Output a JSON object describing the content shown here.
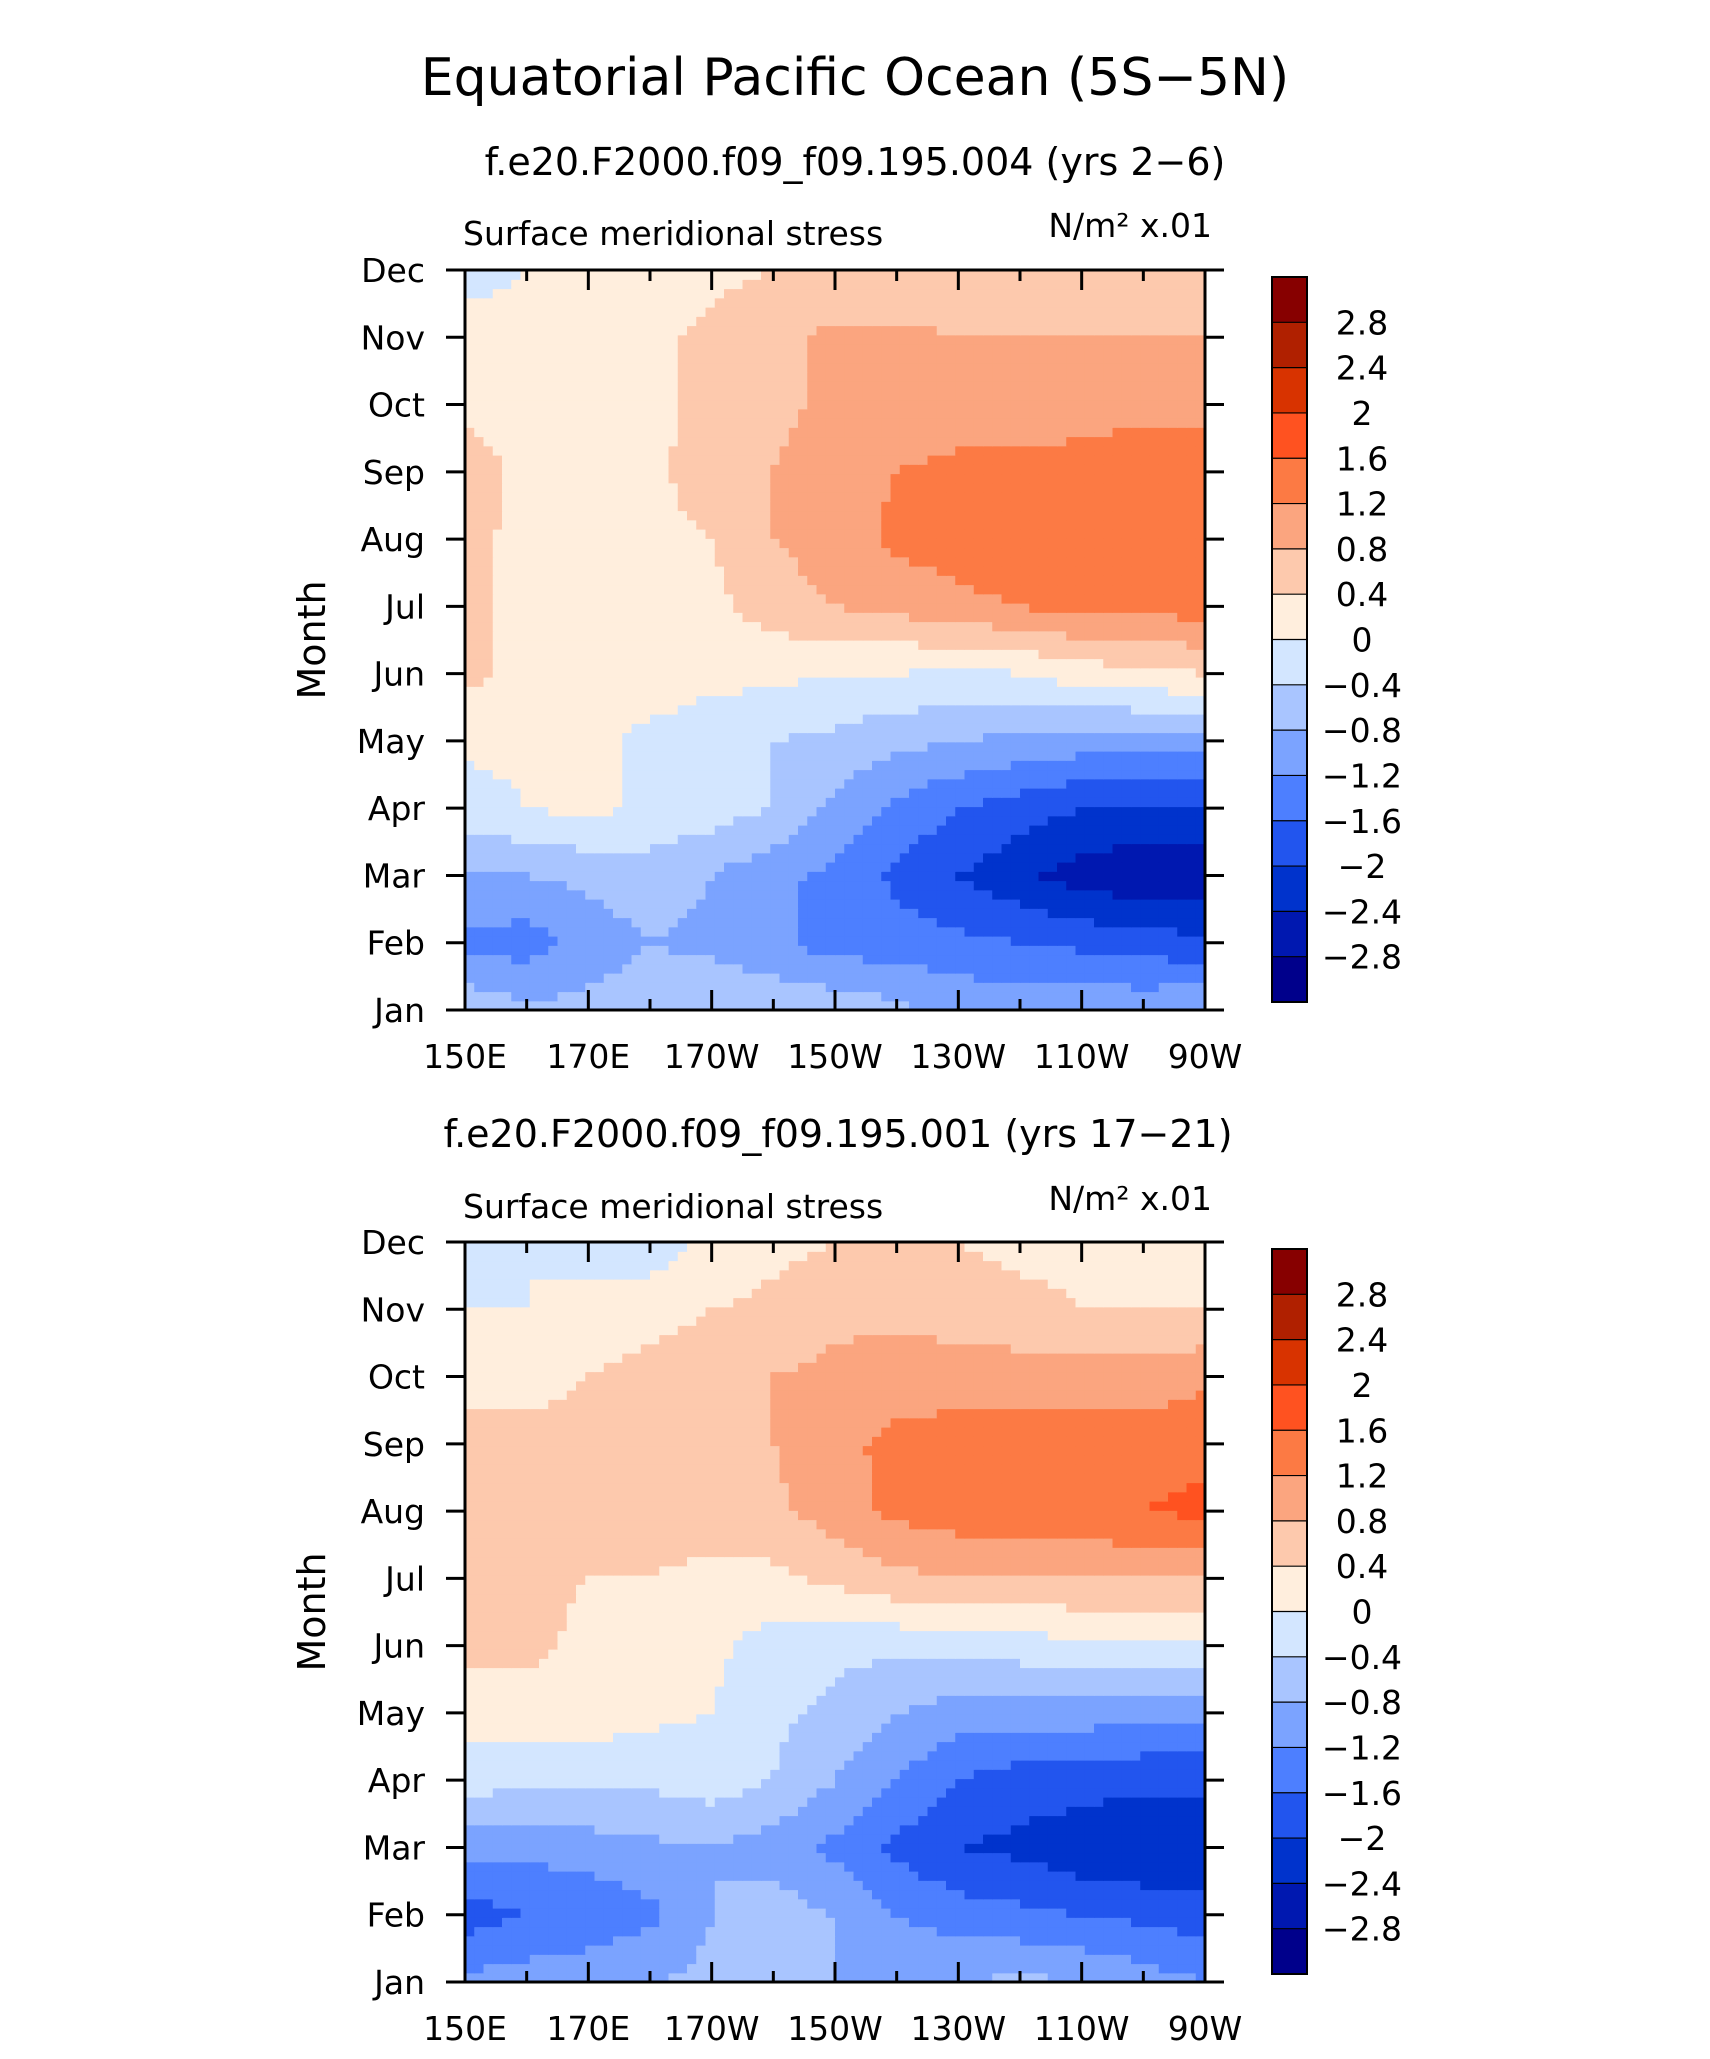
{
  "figure": {
    "title": "Equatorial Pacific Ocean (5S−5N)"
  },
  "chart_data": [
    {
      "type": "heatmap",
      "subtitle": "f.e20.F2000.f09_f09.195.004 (yrs 2−6)",
      "variable": "Surface meridional stress",
      "units": "N/m² x.01",
      "xlabel": "",
      "ylabel": "Month",
      "x_ticks": [
        "150E",
        "170E",
        "170W",
        "150W",
        "130W",
        "110W",
        "90W"
      ],
      "y_ticks": [
        "Jan",
        "Feb",
        "Mar",
        "Apr",
        "May",
        "Jun",
        "Jul",
        "Aug",
        "Sep",
        "Oct",
        "Nov",
        "Dec"
      ],
      "xlim": [
        "150E",
        "90W"
      ],
      "ylim": [
        "Jan",
        "Dec"
      ],
      "colorbar_labels": [
        "2.8",
        "2.4",
        "2",
        "1.6",
        "1.2",
        "0.8",
        "0.4",
        "0",
        "−0.4",
        "−0.8",
        "−1.2",
        "−1.6",
        "−2",
        "−2.4",
        "−2.8"
      ],
      "values": [
        [
          -0.5,
          -0.7,
          -0.7,
          -0.6,
          -0.4,
          -0.5,
          -0.5,
          -0.7,
          -0.9,
          -0.9,
          -0.9,
          -0.9,
          -0.8
        ],
        [
          -1.3,
          -1.4,
          -1.0,
          -0.8,
          -0.9,
          -1.1,
          -1.4,
          -1.4,
          -1.5,
          -1.6,
          -1.7,
          -1.8,
          -1.9
        ],
        [
          -0.8,
          -0.8,
          -0.7,
          -0.6,
          -0.8,
          -1.1,
          -1.3,
          -1.7,
          -2.0,
          -2.3,
          -2.6,
          -2.7,
          -2.7
        ],
        [
          -0.2,
          0.0,
          0.1,
          -0.1,
          -0.2,
          -0.4,
          -0.9,
          -1.3,
          -1.6,
          -1.8,
          -2.0,
          -2.1,
          -2.1
        ],
        [
          0.1,
          0.1,
          0.1,
          -0.1,
          -0.2,
          -0.4,
          -0.5,
          -0.7,
          -0.8,
          -0.9,
          -1.0,
          -1.0,
          -1.0
        ],
        [
          0.5,
          0.3,
          0.2,
          0.2,
          0.1,
          0.1,
          0.0,
          0.0,
          -0.1,
          0.0,
          0.2,
          0.3,
          0.4
        ],
        [
          0.5,
          0.3,
          0.2,
          0.2,
          0.3,
          0.6,
          0.8,
          0.9,
          1.1,
          1.2,
          1.3,
          1.3,
          1.4
        ],
        [
          0.5,
          0.3,
          0.2,
          0.3,
          0.4,
          0.8,
          1.0,
          1.3,
          1.4,
          1.4,
          1.4,
          1.4,
          1.5
        ],
        [
          0.6,
          0.3,
          0.2,
          0.3,
          0.6,
          0.8,
          1.0,
          1.2,
          1.3,
          1.3,
          1.3,
          1.4,
          1.4
        ],
        [
          0.3,
          0.2,
          0.2,
          0.3,
          0.5,
          0.7,
          0.9,
          1.0,
          1.0,
          1.0,
          1.1,
          1.1,
          1.1
        ],
        [
          0.1,
          0.1,
          0.2,
          0.3,
          0.5,
          0.7,
          0.9,
          0.9,
          0.8,
          0.8,
          0.8,
          0.8,
          0.8
        ],
        [
          -0.1,
          0.0,
          0.0,
          0.2,
          0.3,
          0.4,
          0.4,
          0.4,
          0.5,
          0.5,
          0.5,
          0.5,
          0.5
        ]
      ]
    },
    {
      "type": "heatmap",
      "subtitle": "f.e20.F2000.f09_f09.195.001 (yrs 17−21)",
      "variable": "Surface meridional stress",
      "units": "N/m² x.01",
      "xlabel": "",
      "ylabel": "Month",
      "x_ticks": [
        "150E",
        "170E",
        "170W",
        "150W",
        "130W",
        "110W",
        "90W"
      ],
      "y_ticks": [
        "Jan",
        "Feb",
        "Mar",
        "Apr",
        "May",
        "Jun",
        "Jul",
        "Aug",
        "Sep",
        "Oct",
        "Nov",
        "Dec"
      ],
      "xlim": [
        "150E",
        "90W"
      ],
      "ylim": [
        "Jan",
        "Dec"
      ],
      "colorbar_labels": [
        "2.8",
        "2.4",
        "2",
        "1.6",
        "1.2",
        "0.8",
        "0.4",
        "0",
        "−0.4",
        "−0.8",
        "−1.2",
        "−1.6",
        "−2",
        "−2.4",
        "−2.8"
      ],
      "values": [
        [
          -1.1,
          -1.0,
          -0.9,
          -0.8,
          -0.7,
          -0.7,
          -0.8,
          -0.9,
          -0.8,
          -0.7,
          -0.8,
          -1.0,
          -1.2
        ],
        [
          -1.8,
          -1.6,
          -1.5,
          -1.3,
          -0.8,
          -0.6,
          -0.8,
          -1.2,
          -1.4,
          -1.5,
          -1.6,
          -1.7,
          -1.8
        ],
        [
          -1.1,
          -1.1,
          -1.0,
          -0.9,
          -0.8,
          -1.0,
          -1.3,
          -1.7,
          -2.0,
          -2.1,
          -2.3,
          -2.4,
          -2.4
        ],
        [
          -0.2,
          -0.3,
          -0.3,
          -0.3,
          -0.2,
          -0.4,
          -0.8,
          -1.2,
          -1.6,
          -1.8,
          -1.8,
          -1.9,
          -1.9
        ],
        [
          0.2,
          0.2,
          0.2,
          0.1,
          0.0,
          -0.3,
          -0.5,
          -0.8,
          -1.0,
          -1.0,
          -1.0,
          -1.1,
          -1.1
        ],
        [
          0.5,
          0.5,
          0.3,
          0.2,
          0.1,
          -0.2,
          -0.3,
          -0.3,
          -0.2,
          -0.2,
          -0.1,
          -0.1,
          -0.1
        ],
        [
          0.5,
          0.5,
          0.4,
          0.4,
          0.3,
          0.3,
          0.5,
          0.7,
          0.8,
          0.8,
          0.8,
          0.8,
          0.8
        ],
        [
          0.6,
          0.5,
          0.4,
          0.5,
          0.6,
          0.7,
          1.0,
          1.3,
          1.4,
          1.4,
          1.5,
          1.6,
          1.7
        ],
        [
          0.6,
          0.5,
          0.5,
          0.6,
          0.7,
          0.8,
          1.1,
          1.3,
          1.4,
          1.4,
          1.4,
          1.4,
          1.5
        ],
        [
          0.2,
          0.3,
          0.4,
          0.6,
          0.7,
          0.8,
          0.9,
          1.0,
          1.0,
          1.0,
          1.0,
          1.0,
          1.1
        ],
        [
          0.0,
          0.0,
          0.1,
          0.2,
          0.4,
          0.5,
          0.7,
          0.7,
          0.6,
          0.5,
          0.4,
          0.4,
          0.4
        ],
        [
          -0.2,
          0.0,
          -0.1,
          -0.2,
          0.1,
          0.3,
          0.4,
          0.5,
          0.4,
          0.3,
          0.3,
          0.3,
          0.3
        ]
      ]
    }
  ],
  "colors": {
    "levels": [
      "#00008b",
      "#0018b0",
      "#0033cc",
      "#2255ee",
      "#4d7fff",
      "#7ba3ff",
      "#a9c5ff",
      "#d3e6ff",
      "#ffeedd",
      "#fdc9ad",
      "#fba57f",
      "#fc7a44",
      "#ff5220",
      "#d83300",
      "#b02000",
      "#870000"
    ],
    "frame": "#000000"
  }
}
